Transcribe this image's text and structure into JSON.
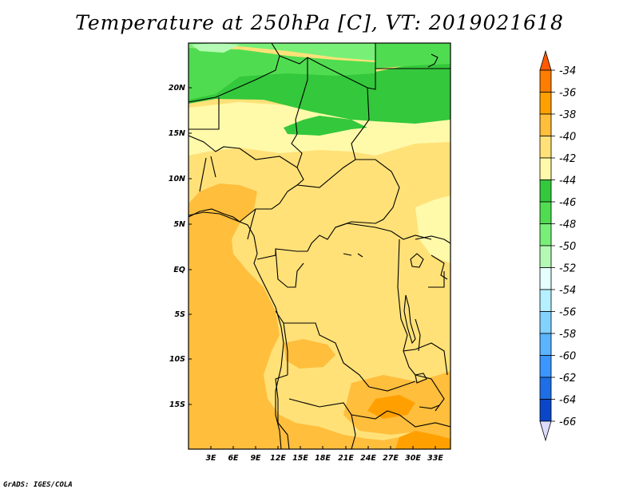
{
  "title": "Temperature at 250hPa [C], VT: 2019021618",
  "credit": "GrADS: IGES/COLA",
  "map": {
    "lat_ticks": [
      "20N",
      "15N",
      "10N",
      "5N",
      "EQ",
      "5S",
      "10S",
      "15S"
    ],
    "lon_ticks": [
      "3E",
      "6E",
      "9E",
      "12E",
      "15E",
      "18E",
      "21E",
      "24E",
      "27E",
      "30E",
      "33E"
    ]
  },
  "colorbar": {
    "labels": [
      "-34",
      "-36",
      "-38",
      "-40",
      "-42",
      "-44",
      "-46",
      "-48",
      "-50",
      "-52",
      "-54",
      "-56",
      "-58",
      "-60",
      "-62",
      "-64",
      "-66"
    ],
    "colors": [
      "#ff5a00",
      "#ff7d00",
      "#ffa000",
      "#ffbe3c",
      "#ffe178",
      "#fffaaa",
      "#34c83c",
      "#50dc50",
      "#78f078",
      "#b4fab4",
      "#e6ffff",
      "#b4f0ff",
      "#82d2ff",
      "#5ab4ff",
      "#3c96ff",
      "#1e6ee6",
      "#0a46c8",
      "#001e96",
      "#dcdcff"
    ]
  }
}
